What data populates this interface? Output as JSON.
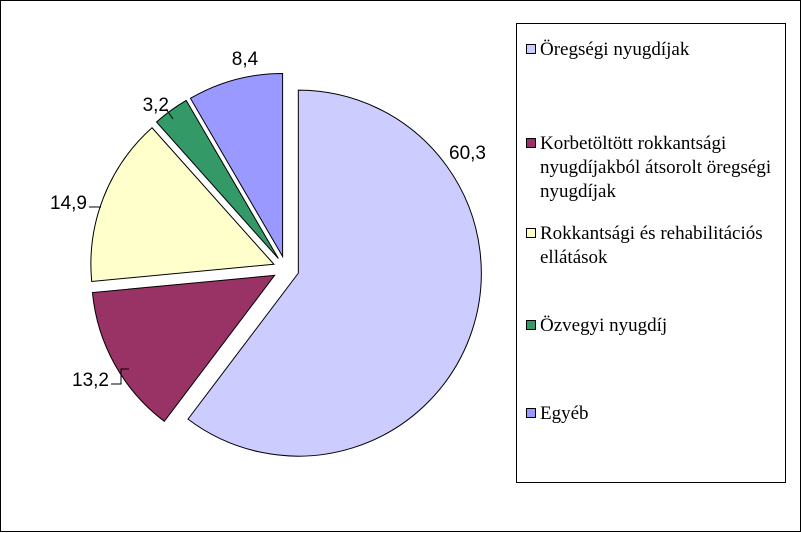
{
  "chart_data": {
    "type": "pie",
    "slices": [
      {
        "label": "Öregségi nyugdíjak",
        "value": 60.3,
        "value_label": "60,3",
        "color": "#CCCCFF",
        "exploded": true
      },
      {
        "label": "Korbetöltött rokkantsági nyugdíjakból átsorolt öregségi nyugdíjak",
        "value": 13.2,
        "value_label": "13,2",
        "color": "#993366",
        "exploded": true
      },
      {
        "label": "Rokkantsági és rehabilitációs ellátások",
        "value": 14.9,
        "value_label": "14,9",
        "color": "#FFFFCC",
        "exploded": true
      },
      {
        "label": "Özvegyi nyugdíj",
        "value": 3.2,
        "value_label": "3,2",
        "color": "#339966",
        "exploded": true
      },
      {
        "label": "Egyéb",
        "value": 8.4,
        "value_label": "8,4",
        "color": "#9999FF",
        "exploded": true
      }
    ],
    "legend": {
      "placement": "right",
      "entries": [
        "Öregségi nyugdíjak",
        "Korbetöltött rokkantsági nyugdíjakból átsorolt öregségi nyugdíjak",
        "Rokkantsági és rehabilitációs ellátások",
        "Özvegyi nyugdíj",
        "Egyéb"
      ]
    },
    "title": ""
  }
}
